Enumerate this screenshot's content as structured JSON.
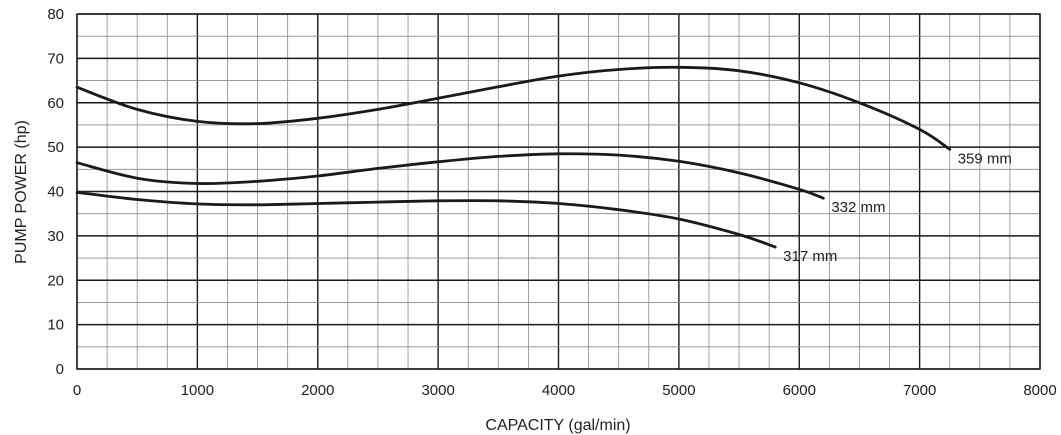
{
  "chart_data": {
    "type": "line",
    "xlabel": "CAPACITY (gal/min)",
    "ylabel": "PUMP POWER (hp)",
    "xlim": [
      0,
      8000
    ],
    "ylim": [
      0,
      80
    ],
    "x_ticks": [
      0,
      1000,
      2000,
      3000,
      4000,
      5000,
      6000,
      7000,
      8000
    ],
    "y_ticks": [
      0,
      10,
      20,
      30,
      40,
      50,
      60,
      70,
      80
    ],
    "x_tick_labels": [
      "0",
      "1000",
      "2000",
      "3000",
      "4000",
      "5000",
      "6000",
      "7000",
      "8000"
    ],
    "y_tick_labels": [
      "0",
      "10",
      "20",
      "30",
      "40",
      "50",
      "60",
      "70",
      "80"
    ],
    "x_minor_step": 250,
    "y_minor_step": 5,
    "grid": true,
    "series": [
      {
        "name": "359 mm",
        "x": [
          0,
          500,
          1000,
          1500,
          2000,
          2500,
          3000,
          3500,
          4000,
          4500,
          5000,
          5500,
          6000,
          6500,
          7000,
          7250
        ],
        "y": [
          63.5,
          58.5,
          55.8,
          55.3,
          56.5,
          58.5,
          61,
          63.6,
          66,
          67.5,
          68,
          67.2,
          64.5,
          60,
          54,
          49.5
        ]
      },
      {
        "name": "332 mm",
        "x": [
          0,
          500,
          1000,
          1500,
          2000,
          2500,
          3000,
          3500,
          4000,
          4500,
          5000,
          5500,
          6000,
          6200
        ],
        "y": [
          46.5,
          43,
          41.8,
          42.3,
          43.5,
          45.2,
          46.7,
          47.9,
          48.5,
          48.2,
          46.8,
          44.2,
          40.5,
          38.5
        ]
      },
      {
        "name": "317 mm",
        "x": [
          0,
          500,
          1000,
          1500,
          2000,
          2500,
          3000,
          3500,
          4000,
          4500,
          5000,
          5500,
          5800
        ],
        "y": [
          39.8,
          38.2,
          37.2,
          37,
          37.3,
          37.6,
          37.9,
          37.9,
          37.3,
          35.9,
          33.8,
          30.3,
          27.5
        ]
      }
    ]
  }
}
